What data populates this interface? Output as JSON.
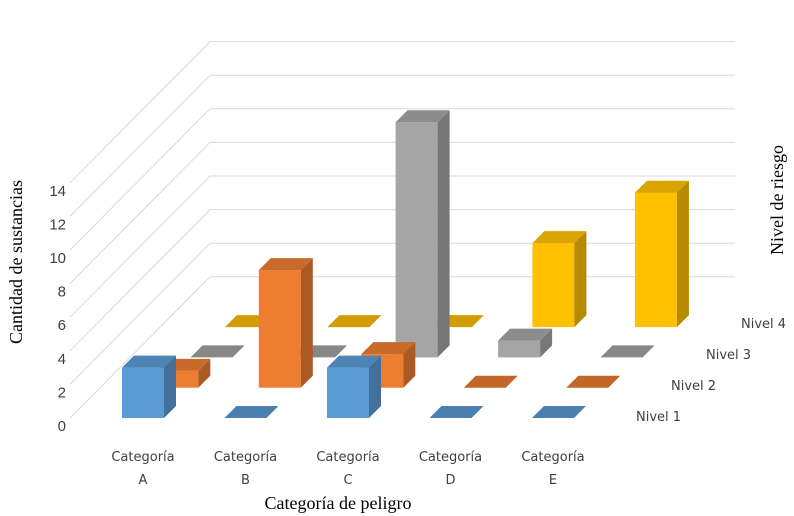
{
  "chart_data": {
    "type": "bar",
    "subtype": "3d-clustered-depth",
    "xlabel": "Categoría de peligro",
    "ylabel": "Cantidad de sustancias",
    "zlabel": "Nivel de riesgo",
    "ylim": [
      0,
      14
    ],
    "yticks": [
      0,
      2,
      4,
      6,
      8,
      10,
      12,
      14
    ],
    "grid": true,
    "categories": [
      {
        "line1": "Categoría",
        "line2": "A"
      },
      {
        "line1": "Categoría",
        "line2": "B"
      },
      {
        "line1": "Categoría",
        "line2": "C"
      },
      {
        "line1": "Categoría",
        "line2": "D"
      },
      {
        "line1": "Categoría",
        "line2": "E"
      }
    ],
    "series": [
      {
        "name": "Nivel 1",
        "color": "#5b9bd5",
        "values": [
          3,
          0,
          3,
          0,
          0
        ]
      },
      {
        "name": "Nivel 2",
        "color": "#ed7d31",
        "values": [
          1,
          7,
          2,
          0,
          0
        ]
      },
      {
        "name": "Nivel 3",
        "color": "#a5a5a5",
        "values": [
          0,
          0,
          14,
          1,
          0
        ]
      },
      {
        "name": "Nivel 4",
        "color": "#ffc000",
        "values": [
          0,
          0,
          0,
          5,
          8
        ]
      }
    ]
  }
}
